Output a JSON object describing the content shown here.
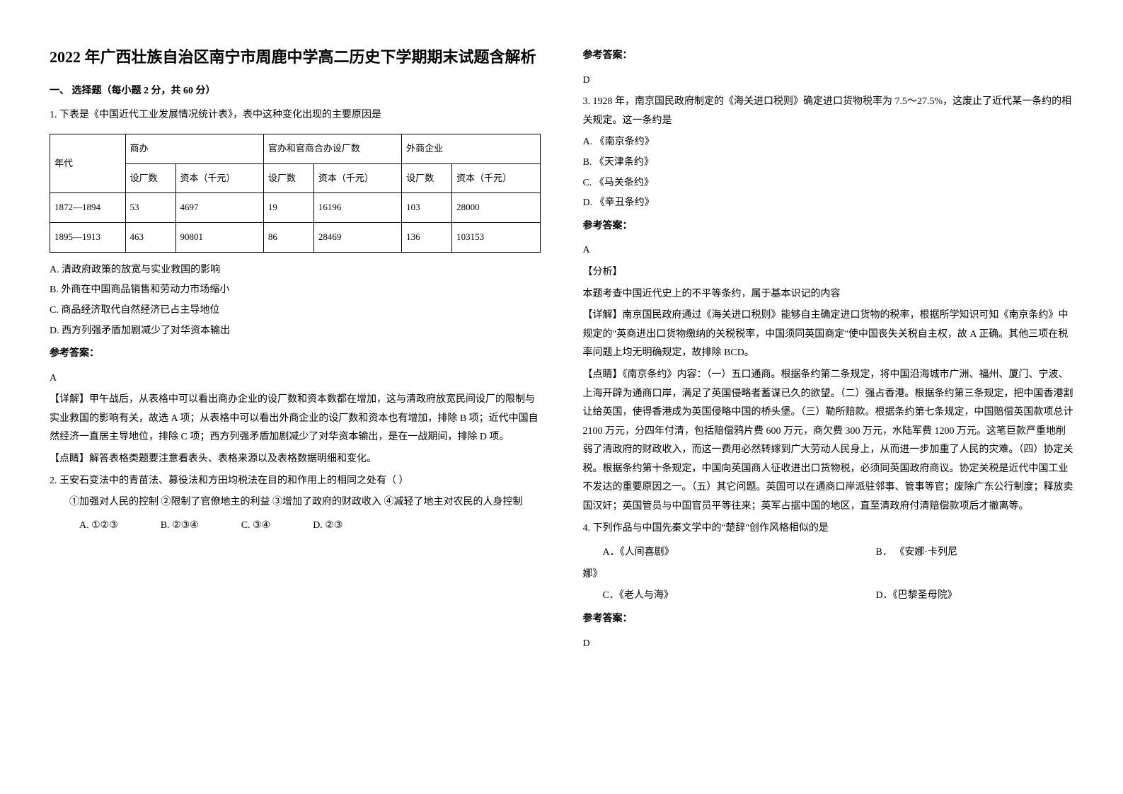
{
  "left": {
    "title": "2022 年广西壮族自治区南宁市周鹿中学高二历史下学期期末试题含解析",
    "section1": "一、 选择题（每小题 2 分，共 60 分）",
    "q1": {
      "stem": "1. 下表是《中国近代工业发展情况统计表》，表中这种变化出现的主要原因是",
      "table": {
        "header_row1": [
          "年代",
          "商办",
          "官办和官商合办设厂数",
          "外商企业"
        ],
        "header_row2": [
          "设厂数",
          "资本（千元）",
          "设厂数",
          "资本（千元）",
          "设厂数",
          "资本（千元）"
        ],
        "rows": [
          [
            "1872—1894",
            "53",
            "4697",
            "19",
            "16196",
            "103",
            "28000"
          ],
          [
            "1895—1913",
            "463",
            "90801",
            "86",
            "28469",
            "136",
            "103153"
          ]
        ]
      },
      "opt_a": "A. 清政府政策的放宽与实业救国的影响",
      "opt_b": "B. 外商在中国商品销售和劳动力市场缩小",
      "opt_c": "C. 商品经济取代自然经济已占主导地位",
      "opt_d": "D. 西方列强矛盾加剧减少了对华资本输出",
      "answer_label": "参考答案：",
      "answer": "A",
      "detail": "【详解】甲午战后，从表格中可以看出商办企业的设厂数和资本数都在增加，这与清政府放宽民间设厂的限制与实业救国的影响有关，故选 A 项；从表格中可以看出外商企业的设厂数和资本也有增加，排除 B 项；近代中国自然经济一直居主导地位，排除 C 项；西方列强矛盾加剧减少了对华资本输出，是在一战期间，排除 D 项。",
      "tip": "【点睛】解答表格类题要注意看表头、表格来源以及表格数据明细和变化。"
    },
    "q2": {
      "stem": "2. 王安石变法中的青苗法、募役法和方田均税法在目的和作用上的相同之处有（      ）",
      "opts_line": "①加强对人民的控制    ②限制了官僚地主的利益    ③增加了政府的财政收入    ④减轻了地主对农民的人身控制",
      "a": "A. ①②③",
      "b": "B. ②③④",
      "c": "C. ③④",
      "d": "D. ②③"
    }
  },
  "right": {
    "answer_label_top": "参考答案：",
    "q2_answer": "D",
    "q3": {
      "stem": "3. 1928 年，南京国民政府制定的《海关进口税则》确定进口货物税率为 7.5～27.5%，这废止了近代某一条约的相关规定。这一条约是",
      "a": "A. 《南京条约》",
      "b": "B. 《天津条约》",
      "c": "C. 《马关条约》",
      "d": "D. 《辛丑条约》",
      "answer_label": "参考答案：",
      "answer": "A",
      "analysis_label": "【分析】",
      "analysis": "本题考查中国近代史上的不平等条约，属于基本识记的内容",
      "detail": "【详解】南京国民政府通过《海关进口税则》能够自主确定进口货物的税率，根据所学知识可知《南京条约》中规定的\"英商进出口货物缴纳的关税税率，中国须同英国商定\"使中国丧失关税自主权，故 A 正确。其他三项在税率问题上均无明确规定，故排除 BCD。",
      "tip": "【点睛】《南京条约》内容：（一）五口通商。根据条约第二条规定，将中国沿海城市广洲、福州、厦门、宁波、上海开辟为通商口岸，满足了英国侵略者蓄谋已久的欲望。（二）强占香港。根据条约第三条规定，把中国香港割让给英国，使得香港成为英国侵略中国的桥头堡。（三）勒所赔款。根据条约第七条规定，中国赔偿英国款项总计 2100 万元，分四年付清，包括赔偿鸦片费 600 万元，商欠费 300 万元，水陆军费 1200 万元。这笔巨款严重地削弱了清政府的财政收入，而这一费用必然转嫁到广大劳动人民身上，从而进一步加重了人民的灾难。（四）协定关税。根据条约第十条规定，中国向英国商人征收进出口货物税，必须同英国政府商议。协定关税是近代中国工业不发达的重要原因之一。（五）其它问题。英国可以在通商口岸派驻邻事、管事等官；废除广东公行制度；释放卖国汉奸；英国管员与中国官员平等往来；英军占据中国的地区，直至清政府付清赔偿款项后才撤离等。"
    },
    "q4": {
      "stem": "4. 下列作品与中国先秦文学中的\"楚辞\"创作风格相似的是",
      "a": "A．《人间喜剧》",
      "b": "B．  《安娜·卡列尼",
      "b_cont": "娜》",
      "c": "C．《老人与海》",
      "d": "D．《巴黎圣母院》",
      "answer_label": "参考答案：",
      "answer": "D"
    }
  }
}
